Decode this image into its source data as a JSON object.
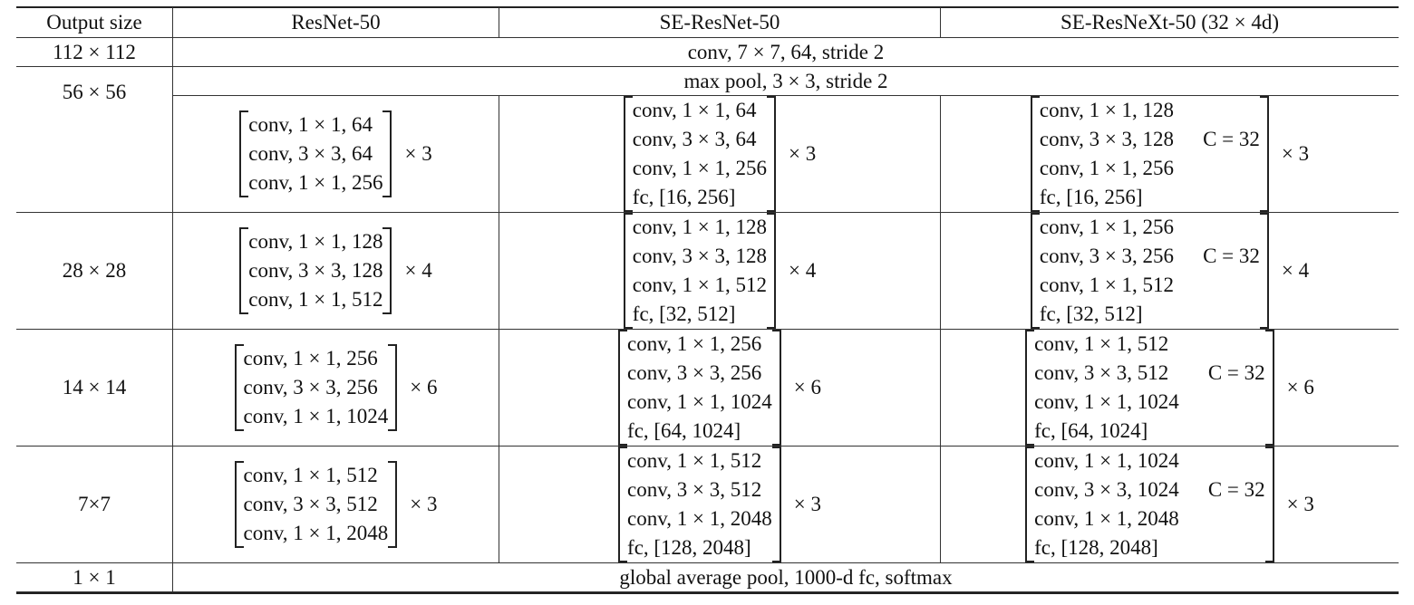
{
  "table": {
    "header": [
      "Output size",
      "ResNet-50",
      "SE-ResNet-50",
      "SE-ResNeXt-50 (32 × 4d)"
    ],
    "rows": [
      {
        "size": "112 × 112",
        "span": "conv, 7 × 7, 64, stride 2"
      },
      {
        "size": "56 × 56",
        "span": "max pool, 3 × 3, stride 2",
        "blocks": [
          {
            "lines": [
              "conv, 1 × 1, 64",
              "conv, 3 × 3, 64",
              "conv, 1 × 1, 256"
            ],
            "repeat": "× 3"
          },
          {
            "lines": [
              "conv, 1 × 1, 64",
              "conv, 3 × 3, 64",
              "conv, 1 × 1, 256",
              "fc, [16, 256]"
            ],
            "repeat": "× 3"
          },
          {
            "lines": [
              "conv, 1 × 1, 128",
              "conv, 3 × 3, 128",
              "conv, 1 × 1, 256",
              "fc, [16, 256]"
            ],
            "cardinality": "C = 32",
            "repeat": "× 3"
          }
        ]
      },
      {
        "size": "28 × 28",
        "blocks": [
          {
            "lines": [
              "conv, 1 × 1, 128",
              "conv, 3 × 3, 128",
              "conv, 1 × 1, 512"
            ],
            "repeat": "× 4"
          },
          {
            "lines": [
              "conv, 1 × 1, 128",
              "conv, 3 × 3, 128",
              "conv, 1 × 1, 512",
              "fc, [32, 512]"
            ],
            "repeat": "× 4"
          },
          {
            "lines": [
              "conv, 1 × 1, 256",
              "conv, 3 × 3, 256",
              "conv, 1 × 1, 512",
              "fc, [32, 512]"
            ],
            "cardinality": "C = 32",
            "repeat": "× 4"
          }
        ]
      },
      {
        "size": "14 × 14",
        "blocks": [
          {
            "lines": [
              "conv, 1 × 1, 256",
              "conv, 3 × 3, 256",
              "conv, 1 × 1, 1024"
            ],
            "repeat": "× 6"
          },
          {
            "lines": [
              "conv, 1 × 1, 256",
              "conv, 3 × 3, 256",
              "conv, 1 × 1, 1024",
              "fc, [64, 1024]"
            ],
            "repeat": "× 6"
          },
          {
            "lines": [
              "conv, 1 × 1, 512",
              "conv, 3 × 3, 512",
              "conv, 1 × 1, 1024",
              "fc, [64, 1024]"
            ],
            "cardinality": "C = 32",
            "repeat": "× 6"
          }
        ]
      },
      {
        "size": "7×7",
        "blocks": [
          {
            "lines": [
              "conv, 1 × 1, 512",
              "conv, 3 × 3, 512",
              "conv, 1 × 1, 2048"
            ],
            "repeat": "× 3"
          },
          {
            "lines": [
              "conv, 1 × 1, 512",
              "conv, 3 × 3, 512",
              "conv, 1 × 1, 2048",
              "fc, [128, 2048]"
            ],
            "repeat": "× 3"
          },
          {
            "lines": [
              "conv, 1 × 1, 1024",
              "conv, 3 × 3, 1024",
              "conv, 1 × 1, 2048",
              "fc, [128, 2048]"
            ],
            "cardinality": "C = 32",
            "repeat": "× 3"
          }
        ]
      },
      {
        "size": "1 × 1",
        "span": "global average pool, 1000-d fc, softmax"
      }
    ]
  }
}
